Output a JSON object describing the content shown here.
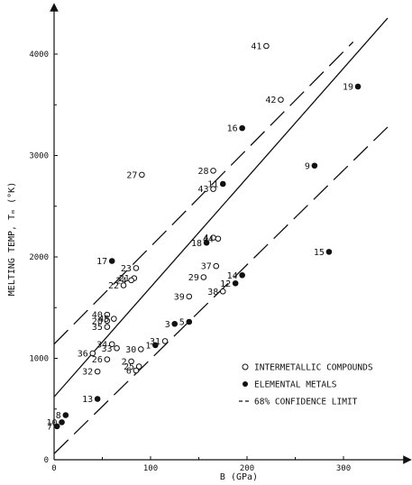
{
  "chart_data": {
    "type": "scatter",
    "xlabel": "B (GPa)",
    "ylabel": "MELTING TEMP, Tₘ (°K)",
    "xlim": [
      0,
      350
    ],
    "ylim": [
      0,
      4500
    ],
    "x_ticks": [
      {
        "value": 0,
        "label": "0"
      },
      {
        "value": 100,
        "label": "100"
      },
      {
        "value": 200,
        "label": "200"
      },
      {
        "value": 300,
        "label": "300"
      }
    ],
    "y_ticks": [
      {
        "value": 0,
        "label": "0"
      },
      {
        "value": 1000,
        "label": "1000"
      },
      {
        "value": 2000,
        "label": "2000"
      },
      {
        "value": 3000,
        "label": "3000"
      },
      {
        "value": 4000,
        "label": "4000"
      }
    ],
    "legend": {
      "placement": "bottom-right",
      "entries": [
        {
          "marker": "open-circle",
          "label": "INTERMETALLIC COMPOUNDS"
        },
        {
          "marker": "filled-circle",
          "label": "ELEMENTAL METALS"
        },
        {
          "marker": "dashed-line",
          "label": "68% CONFIDENCE LIMIT"
        }
      ]
    },
    "series": [
      {
        "name": "INTERMETALLIC COMPOUNDS",
        "marker": "open-circle",
        "points": [
          {
            "label": "2",
            "x": 80,
            "y": 970
          },
          {
            "label": "4",
            "x": 165,
            "y": 2190
          },
          {
            "label": "20",
            "x": 55,
            "y": 1370
          },
          {
            "label": "21",
            "x": 83,
            "y": 1790
          },
          {
            "label": "22",
            "x": 72,
            "y": 1720
          },
          {
            "label": "23",
            "x": 85,
            "y": 1890
          },
          {
            "label": "24",
            "x": 80,
            "y": 1770
          },
          {
            "label": "25",
            "x": 88,
            "y": 920
          },
          {
            "label": "26",
            "x": 55,
            "y": 990
          },
          {
            "label": "27",
            "x": 91,
            "y": 2810
          },
          {
            "label": "28",
            "x": 165,
            "y": 2850
          },
          {
            "label": "29",
            "x": 155,
            "y": 1800
          },
          {
            "label": "30",
            "x": 90,
            "y": 1090
          },
          {
            "label": "31",
            "x": 115,
            "y": 1170
          },
          {
            "label": "32",
            "x": 45,
            "y": 870
          },
          {
            "label": "33",
            "x": 65,
            "y": 1100
          },
          {
            "label": "34",
            "x": 60,
            "y": 1140
          },
          {
            "label": "35",
            "x": 55,
            "y": 1310
          },
          {
            "label": "36",
            "x": 40,
            "y": 1050
          },
          {
            "label": "37",
            "x": 168,
            "y": 1910
          },
          {
            "label": "38",
            "x": 175,
            "y": 1660
          },
          {
            "label": "39",
            "x": 140,
            "y": 1610
          },
          {
            "label": "40",
            "x": 55,
            "y": 1430
          },
          {
            "label": "41",
            "x": 220,
            "y": 4080
          },
          {
            "label": "42",
            "x": 235,
            "y": 3550
          },
          {
            "label": "43",
            "x": 165,
            "y": 2670
          },
          {
            "label": "44",
            "x": 170,
            "y": 2180
          },
          {
            "label": "45",
            "x": 62,
            "y": 1390
          },
          {
            "label": "6",
            "x": 85,
            "y": 880
          }
        ]
      },
      {
        "name": "ELEMENTAL METALS",
        "marker": "filled-circle",
        "points": [
          {
            "label": "1",
            "x": 105,
            "y": 1130
          },
          {
            "label": "3",
            "x": 125,
            "y": 1340
          },
          {
            "label": "5",
            "x": 140,
            "y": 1360
          },
          {
            "label": "7",
            "x": 3,
            "y": 330
          },
          {
            "label": "8",
            "x": 12,
            "y": 440
          },
          {
            "label": "9",
            "x": 270,
            "y": 2900
          },
          {
            "label": "10",
            "x": 8,
            "y": 370
          },
          {
            "label": "11",
            "x": 175,
            "y": 2720
          },
          {
            "label": "12",
            "x": 188,
            "y": 1740
          },
          {
            "label": "13",
            "x": 45,
            "y": 600
          },
          {
            "label": "14",
            "x": 195,
            "y": 1820
          },
          {
            "label": "15",
            "x": 285,
            "y": 2050
          },
          {
            "label": "16",
            "x": 195,
            "y": 3270
          },
          {
            "label": "17",
            "x": 60,
            "y": 1960
          },
          {
            "label": "18",
            "x": 158,
            "y": 2140
          },
          {
            "label": "19",
            "x": 315,
            "y": 3680
          }
        ]
      }
    ],
    "fit_lines": [
      {
        "kind": "solid",
        "x": [
          0,
          350
        ],
        "y": [
          620,
          4400
        ]
      },
      {
        "kind": "dashed",
        "x": [
          0,
          310
        ],
        "y": [
          1140,
          4120
        ]
      },
      {
        "kind": "dashed",
        "x": [
          0,
          350
        ],
        "y": [
          60,
          3320
        ]
      }
    ]
  }
}
